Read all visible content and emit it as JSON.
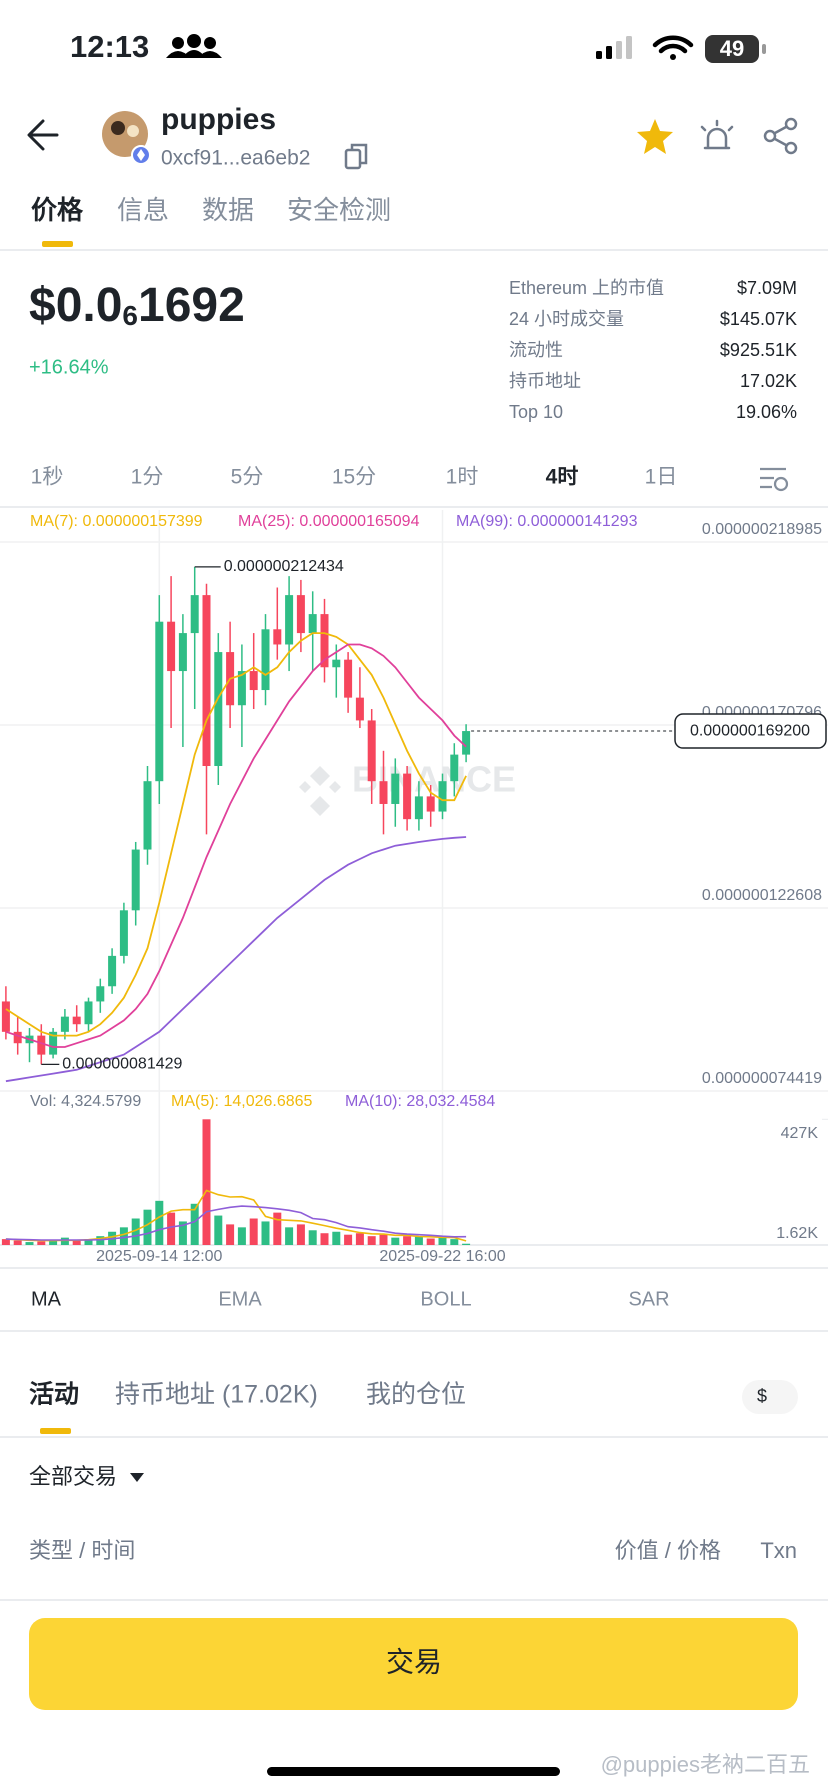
{
  "status_bar": {
    "time": "12:13",
    "battery": "49"
  },
  "header": {
    "name": "puppies",
    "address": "0xcf91...ea6eb2"
  },
  "tabs": {
    "items": [
      "价格",
      "信息",
      "数据",
      "安全检测"
    ],
    "active": 0
  },
  "price": {
    "prefix": "$0.0",
    "subscript": "6",
    "digits": "1692",
    "change": "+16.64%"
  },
  "stats": [
    {
      "label": "Ethereum 上的市值",
      "value": "$7.09M"
    },
    {
      "label": "24 小时成交量",
      "value": "$145.07K"
    },
    {
      "label": "流动性",
      "value": "$925.51K"
    },
    {
      "label": "持币地址",
      "value": "17.02K"
    },
    {
      "label": "Top 10",
      "value": "19.06%"
    }
  ],
  "intervals": {
    "items": [
      "1秒",
      "1分",
      "5分",
      "15分",
      "1时",
      "4时",
      "1日"
    ],
    "active": 5
  },
  "chart_data": [
    {
      "type": "candlestick",
      "watermark": "BINANCE",
      "up_color": "#2ebd85",
      "down_color": "#f6465d",
      "categories": [
        null,
        null,
        null,
        null,
        null,
        null,
        null,
        null,
        null,
        null,
        null,
        null,
        null,
        "2025-09-14 12:00",
        null,
        null,
        null,
        null,
        null,
        null,
        null,
        null,
        null,
        null,
        null,
        null,
        null,
        null,
        null,
        null,
        null,
        null,
        null,
        null,
        null,
        null,
        null,
        "2025-09-22 16:00",
        null,
        null
      ],
      "ohlc": [
        [
          9.8e-08,
          1.02e-07,
          8.8e-08,
          9e-08
        ],
        [
          9e-08,
          9.4e-08,
          8.4e-08,
          8.7e-08
        ],
        [
          8.7e-08,
          9.1e-08,
          8.2e-08,
          8.9e-08
        ],
        [
          8.9e-08,
          9.2e-08,
          8.1429e-08,
          8.4e-08
        ],
        [
          8.4e-08,
          9.1e-08,
          8.3e-08,
          9e-08
        ],
        [
          9e-08,
          9.6e-08,
          8.8e-08,
          9.4e-08
        ],
        [
          9.4e-08,
          9.7e-08,
          9e-08,
          9.2e-08
        ],
        [
          9.2e-08,
          9.9e-08,
          9e-08,
          9.8e-08
        ],
        [
          9.8e-08,
          1.04e-07,
          9.5e-08,
          1.02e-07
        ],
        [
          1.02e-07,
          1.12e-07,
          1e-07,
          1.1e-07
        ],
        [
          1.1e-07,
          1.24e-07,
          1.08e-07,
          1.22e-07
        ],
        [
          1.22e-07,
          1.4e-07,
          1.18e-07,
          1.38e-07
        ],
        [
          1.38e-07,
          1.6e-07,
          1.34e-07,
          1.56e-07
        ],
        [
          1.56e-07,
          2.05e-07,
          1.5e-07,
          1.98e-07
        ],
        [
          1.98e-07,
          2.1e-07,
          1.7e-07,
          1.85e-07
        ],
        [
          1.85e-07,
          2e-07,
          1.65e-07,
          1.95e-07
        ],
        [
          1.95e-07,
          2.12434e-07,
          1.75e-07,
          2.05e-07
        ],
        [
          2.05e-07,
          2.08e-07,
          1.42e-07,
          1.6e-07
        ],
        [
          1.6e-07,
          1.95e-07,
          1.55e-07,
          1.9e-07
        ],
        [
          1.9e-07,
          1.98e-07,
          1.7e-07,
          1.76e-07
        ],
        [
          1.76e-07,
          1.92e-07,
          1.65e-07,
          1.85e-07
        ],
        [
          1.85e-07,
          1.95e-07,
          1.75e-07,
          1.8e-07
        ],
        [
          1.8e-07,
          2e-07,
          1.76e-07,
          1.96e-07
        ],
        [
          1.96e-07,
          2.07e-07,
          1.88e-07,
          1.92e-07
        ],
        [
          1.92e-07,
          2.1e-07,
          1.85e-07,
          2.05e-07
        ],
        [
          2.05e-07,
          2.09e-07,
          1.9e-07,
          1.95e-07
        ],
        [
          1.95e-07,
          2.06e-07,
          1.85e-07,
          2e-07
        ],
        [
          2e-07,
          2.04e-07,
          1.82e-07,
          1.86e-07
        ],
        [
          1.86e-07,
          1.92e-07,
          1.78e-07,
          1.88e-07
        ],
        [
          1.88e-07,
          1.9e-07,
          1.74e-07,
          1.78e-07
        ],
        [
          1.78e-07,
          1.86e-07,
          1.7e-07,
          1.72e-07
        ],
        [
          1.72e-07,
          1.75e-07,
          1.5e-07,
          1.56e-07
        ],
        [
          1.56e-07,
          1.64e-07,
          1.42e-07,
          1.5e-07
        ],
        [
          1.5e-07,
          1.62e-07,
          1.44e-07,
          1.58e-07
        ],
        [
          1.58e-07,
          1.6e-07,
          1.43e-07,
          1.46e-07
        ],
        [
          1.46e-07,
          1.56e-07,
          1.43e-07,
          1.52e-07
        ],
        [
          1.52e-07,
          1.55e-07,
          1.44e-07,
          1.48e-07
        ],
        [
          1.48e-07,
          1.58e-07,
          1.46e-07,
          1.56e-07
        ],
        [
          1.56e-07,
          1.66e-07,
          1.52e-07,
          1.63e-07
        ],
        [
          1.63e-07,
          1.71e-07,
          1.61e-07,
          1.692e-07
        ]
      ],
      "series": [
        {
          "name": "MA(7): 0.000000157399",
          "color": "#f0b90b",
          "values": [
            9.6e-08,
            9.4e-08,
            9.2e-08,
            9e-08,
            8.9e-08,
            8.9e-08,
            8.9e-08,
            9e-08,
            9.2e-08,
            9.5e-08,
            9.9e-08,
            1.05e-07,
            1.12e-07,
            1.24e-07,
            1.37e-07,
            1.5e-07,
            1.63e-07,
            1.72e-07,
            1.78e-07,
            1.83e-07,
            1.84e-07,
            1.86e-07,
            1.84e-07,
            1.86e-07,
            1.9e-07,
            1.93e-07,
            1.95e-07,
            1.95e-07,
            1.94e-07,
            1.92e-07,
            1.88e-07,
            1.84e-07,
            1.78e-07,
            1.71e-07,
            1.64e-07,
            1.58e-07,
            1.53e-07,
            1.51e-07,
            1.51e-07,
            1.57399e-07
          ]
        },
        {
          "name": "MA(25): 0.000000165094",
          "color": "#e0409a",
          "values": [
            9e-08,
            8.9e-08,
            8.8e-08,
            8.7e-08,
            8.6e-08,
            8.6e-08,
            8.7e-08,
            8.8e-08,
            8.9e-08,
            9.1e-08,
            9.3e-08,
            9.6e-08,
            1e-07,
            1.06e-07,
            1.13e-07,
            1.2e-07,
            1.28e-07,
            1.36e-07,
            1.43e-07,
            1.5e-07,
            1.56e-07,
            1.62e-07,
            1.67e-07,
            1.72e-07,
            1.77e-07,
            1.81e-07,
            1.85e-07,
            1.88e-07,
            1.9e-07,
            1.92e-07,
            1.92e-07,
            1.91e-07,
            1.89e-07,
            1.86e-07,
            1.82e-07,
            1.78e-07,
            1.75e-07,
            1.72e-07,
            1.68e-07,
            1.65094e-07
          ]
        },
        {
          "name": "MA(99): 0.000000141293",
          "color": "#8e5ed8",
          "values": [
            7.7e-08,
            7.75e-08,
            7.8e-08,
            7.85e-08,
            7.9e-08,
            7.95e-08,
            8e-08,
            8.1e-08,
            8.2e-08,
            8.3e-08,
            8.4e-08,
            8.6e-08,
            8.8e-08,
            9e-08,
            9.3e-08,
            9.6e-08,
            9.9e-08,
            1.02e-07,
            1.05e-07,
            1.08e-07,
            1.11e-07,
            1.14e-07,
            1.17e-07,
            1.2e-07,
            1.225e-07,
            1.25e-07,
            1.275e-07,
            1.3e-07,
            1.32e-07,
            1.34e-07,
            1.355e-07,
            1.37e-07,
            1.38e-07,
            1.39e-07,
            1.395e-07,
            1.4e-07,
            1.404e-07,
            1.408e-07,
            1.411e-07,
            1.41293e-07
          ]
        }
      ],
      "high_label": "0.000000212434",
      "low_label": "0.000000081429",
      "last_price_label": "0.000000169200",
      "ylim": [
        7.4419e-08,
        2.18985e-07
      ],
      "yticks": [
        {
          "value": 2.18985e-07,
          "label": "0.000000218985"
        },
        {
          "value": 1.70796e-07,
          "label": "0.000000170796"
        },
        {
          "value": 1.22608e-07,
          "label": "0.000000122608"
        },
        {
          "value": 7.4419e-08,
          "label": "0.000000074419"
        }
      ],
      "grid": true
    },
    {
      "type": "bar",
      "volume_label": "Vol: 4,324.5799",
      "values": [
        20000.0,
        15000.0,
        10000.0,
        12000.0,
        18000.0,
        25000.0,
        15000.0,
        20000.0,
        30000.0,
        45000.0,
        60000.0,
        90000.0,
        120000.0,
        150000.0,
        110000.0,
        80000.0,
        140000.0,
        427000.0,
        100000.0,
        70000.0,
        60000.0,
        90000.0,
        80000.0,
        110000.0,
        60000.0,
        70000.0,
        50000.0,
        40000.0,
        45000.0,
        35000.0,
        40000.0,
        30000.0,
        35000.0,
        25000.0,
        30000.0,
        28000.0,
        22000.0,
        25000.0,
        20000.0,
        4324.5799
      ],
      "series": [
        {
          "name": "MA(5): 14,026.6865",
          "color": "#f0b90b",
          "values": [
            20000.0,
            18000.0,
            16000.0,
            15000.0,
            15000.0,
            16000.0,
            16000.0,
            18000.0,
            22000.0,
            28000.0,
            36000.0,
            50000.0,
            69000.0,
            95000.0,
            115000.0,
            120000.0,
            120000.0,
            185000.0,
            171000.0,
            163000.0,
            164000.0,
            153000.0,
            97000.0,
            86000.0,
            84000.0,
            82000.0,
            74000.0,
            66000.0,
            57000.0,
            50000.0,
            42000.0,
            38000.0,
            37000.0,
            33000.0,
            33000.0,
            29000.0,
            28000.0,
            26000.0,
            25000.0,
            14026.6865
          ]
        },
        {
          "name": "MA(10): 28,032.4584",
          "color": "#8e5ed8",
          "values": [
            20000.0,
            19000.0,
            18000.0,
            17000.0,
            17000.0,
            17000.0,
            17000.0,
            17000.0,
            18000.0,
            21000.0,
            25000.0,
            31000.0,
            39000.0,
            52000.0,
            61000.0,
            67000.0,
            79000.0,
            113000.0,
            121000.0,
            128000.0,
            132000.0,
            130000.0,
            127000.0,
            123000.0,
            118000.0,
            110000.0,
            90000.0,
            86000.0,
            76000.0,
            62000.0,
            58000.0,
            52000.0,
            47000.0,
            40000.0,
            37000.0,
            35000.0,
            33000.0,
            30000.0,
            28000.0,
            28032.4584
          ]
        }
      ],
      "ylim": [
        0,
        445000.0
      ],
      "yticks": [
        {
          "value": 427000.0,
          "label": "427K"
        },
        {
          "value": 1620,
          "label": "1.62K"
        }
      ]
    }
  ],
  "indicators": {
    "items": [
      "MA",
      "EMA",
      "BOLL",
      "SAR"
    ],
    "active": 0
  },
  "activity": {
    "tabs": [
      "活动",
      "持币地址 (17.02K)",
      "我的仓位"
    ],
    "active": 0,
    "currency": "$",
    "filter": "全部交易",
    "columns": [
      "类型 / 时间",
      "价值 / 价格",
      "Txn"
    ]
  },
  "trade_button": "交易",
  "watermark": "@puppies老衲二百五"
}
